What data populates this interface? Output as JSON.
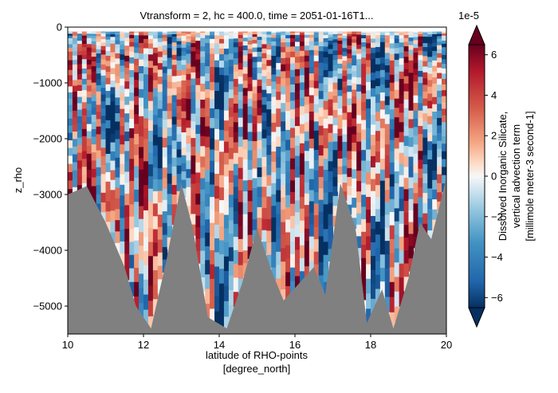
{
  "chart_data": {
    "type": "heatmap",
    "title": "Vtransform = 2, hc = 400.0, time = 2051-01-16T1...",
    "xlabel": "latitude of RHO-points",
    "xlabel_units": "[degree_north]",
    "ylabel": "z_rho",
    "xlim": [
      10,
      20
    ],
    "ylim": [
      -5500,
      0
    ],
    "xticks": [
      10,
      12,
      14,
      16,
      18,
      20
    ],
    "yticks": [
      0,
      -1000,
      -2000,
      -3000,
      -4000,
      -5000
    ],
    "colorbar": {
      "label_lines": [
        "Dissolved Inorganic Silicate,",
        "vertical advection term",
        "[millimole meter-3 second-1]"
      ],
      "offset_text": "1e-5",
      "range": [
        -6.5,
        6.5
      ],
      "ticks": [
        6,
        4,
        2,
        0,
        -2,
        -4,
        -6
      ],
      "colormap": "RdBu_r",
      "extend": "both"
    },
    "bathymetry_color": "#808080",
    "bathymetry_depth": [
      {
        "lat": 10.0,
        "depth": -3000
      },
      {
        "lat": 10.5,
        "depth": -2850
      },
      {
        "lat": 11.0,
        "depth": -3500
      },
      {
        "lat": 11.5,
        "depth": -4300
      },
      {
        "lat": 11.8,
        "depth": -5000
      },
      {
        "lat": 12.2,
        "depth": -5400
      },
      {
        "lat": 12.6,
        "depth": -4200
      },
      {
        "lat": 13.0,
        "depth": -2800
      },
      {
        "lat": 13.3,
        "depth": -3600
      },
      {
        "lat": 13.7,
        "depth": -5200
      },
      {
        "lat": 14.2,
        "depth": -5400
      },
      {
        "lat": 14.6,
        "depth": -4600
      },
      {
        "lat": 15.0,
        "depth": -3600
      },
      {
        "lat": 15.4,
        "depth": -4400
      },
      {
        "lat": 15.7,
        "depth": -4900
      },
      {
        "lat": 16.1,
        "depth": -4600
      },
      {
        "lat": 16.5,
        "depth": -4300
      },
      {
        "lat": 16.8,
        "depth": -4800
      },
      {
        "lat": 17.2,
        "depth": -2800
      },
      {
        "lat": 17.6,
        "depth": -3600
      },
      {
        "lat": 17.9,
        "depth": -5300
      },
      {
        "lat": 18.3,
        "depth": -4700
      },
      {
        "lat": 18.6,
        "depth": -5400
      },
      {
        "lat": 19.0,
        "depth": -4500
      },
      {
        "lat": 19.3,
        "depth": -3500
      },
      {
        "lat": 19.6,
        "depth": -3800
      },
      {
        "lat": 20.0,
        "depth": -2700
      }
    ]
  }
}
